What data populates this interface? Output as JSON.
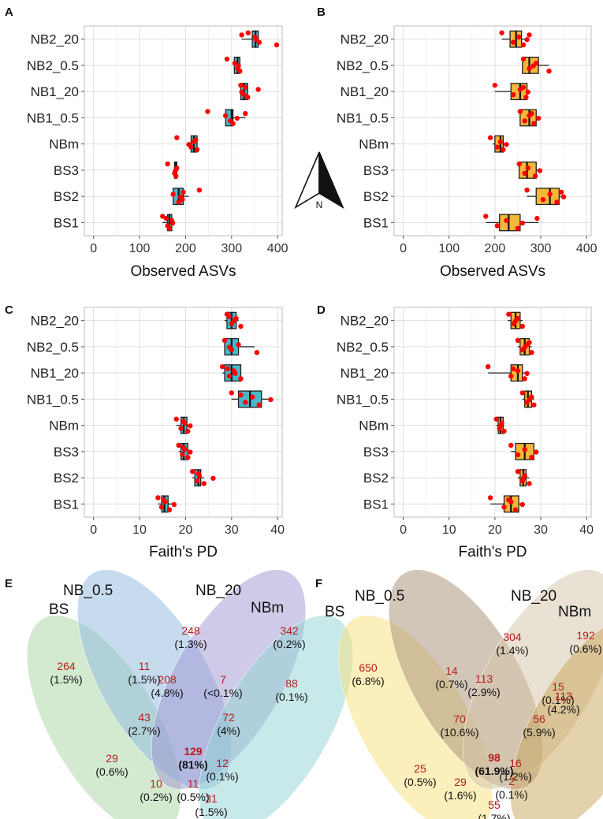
{
  "colors": {
    "teal_box": "#4ab6c9",
    "gold_box": "#f3b73a",
    "point": "#ff0000",
    "grid": "#dedede",
    "venn_count": "#b71c1c"
  },
  "compass_label": "N",
  "chart_data": [
    {
      "panel": "A",
      "type": "box",
      "xlabel": "Observed ASVs",
      "xlim": [
        -20,
        410
      ],
      "ticks": [
        0,
        100,
        200,
        300,
        400
      ],
      "box_color": "teal_box",
      "categories": [
        "NB2_20",
        "NB2_0.5",
        "NB1_20",
        "NB1_0.5",
        "NBm",
        "BS3",
        "BS2",
        "BS1"
      ],
      "boxes": [
        {
          "q1": 345,
          "med": 352,
          "q3": 358,
          "wlo": 322,
          "whi": 358
        },
        {
          "q1": 306,
          "med": 313,
          "q3": 318,
          "wlo": 306,
          "whi": 318
        },
        {
          "q1": 320,
          "med": 327,
          "q3": 335,
          "wlo": 320,
          "whi": 335
        },
        {
          "q1": 287,
          "med": 300,
          "q3": 303,
          "wlo": 287,
          "whi": 330
        },
        {
          "q1": 212,
          "med": 218,
          "q3": 225,
          "wlo": 207,
          "whi": 225
        },
        {
          "q1": 176,
          "med": 179,
          "q3": 181,
          "wlo": 176,
          "whi": 181
        },
        {
          "q1": 173,
          "med": 185,
          "q3": 195,
          "wlo": 173,
          "whi": 207
        },
        {
          "q1": 161,
          "med": 165,
          "q3": 170,
          "wlo": 150,
          "whi": 172
        }
      ],
      "points": [
        [
          336,
          360,
          351,
          398,
          353,
          322
        ],
        [
          290,
          313,
          307,
          318,
          315
        ],
        [
          320,
          327,
          358,
          335,
          322,
          330
        ],
        [
          248,
          297,
          287,
          303,
          312,
          330
        ],
        [
          181,
          212,
          218,
          225,
          207,
          222
        ],
        [
          161,
          176,
          181,
          179,
          178
        ],
        [
          230,
          193,
          173,
          185,
          189,
          195
        ],
        [
          150,
          161,
          170,
          165,
          172,
          158
        ]
      ]
    },
    {
      "panel": "B",
      "type": "box",
      "xlabel": "Observed ASVs",
      "xlim": [
        -20,
        410
      ],
      "ticks": [
        0,
        100,
        200,
        300,
        400
      ],
      "box_color": "gold_box",
      "categories": [
        "NB2_20",
        "NB2_0.5",
        "NB1_20",
        "NB1_0.5",
        "NBm",
        "BS3",
        "BS2",
        "BS1"
      ],
      "boxes": [
        {
          "q1": 233,
          "med": 246,
          "q3": 258,
          "wlo": 215,
          "whi": 275
        },
        {
          "q1": 260,
          "med": 275,
          "q3": 295,
          "wlo": 260,
          "whi": 318
        },
        {
          "q1": 235,
          "med": 255,
          "q3": 270,
          "wlo": 200,
          "whi": 275
        },
        {
          "q1": 255,
          "med": 275,
          "q3": 290,
          "wlo": 255,
          "whi": 295
        },
        {
          "q1": 200,
          "med": 212,
          "q3": 218,
          "wlo": 195,
          "whi": 225
        },
        {
          "q1": 253,
          "med": 270,
          "q3": 290,
          "wlo": 253,
          "whi": 300
        },
        {
          "q1": 290,
          "med": 320,
          "q3": 340,
          "wlo": 270,
          "whi": 350
        },
        {
          "q1": 210,
          "med": 230,
          "q3": 255,
          "wlo": 180,
          "whi": 295
        }
      ],
      "points": [
        [
          215,
          240,
          252,
          262,
          270,
          275
        ],
        [
          262,
          275,
          290,
          318,
          284
        ],
        [
          200,
          240,
          255,
          268,
          272,
          262
        ],
        [
          255,
          265,
          275,
          285,
          295,
          280
        ],
        [
          190,
          205,
          212,
          218,
          225
        ],
        [
          253,
          265,
          272,
          288,
          298
        ],
        [
          270,
          305,
          320,
          335,
          350,
          345
        ],
        [
          180,
          205,
          225,
          250,
          260,
          292
        ]
      ]
    },
    {
      "panel": "C",
      "type": "box",
      "xlabel": "Faith's PD",
      "xlim": [
        -2,
        41
      ],
      "ticks": [
        0,
        10,
        20,
        30,
        40
      ],
      "box_color": "teal_box",
      "categories": [
        "NB2_20",
        "NB2_0.5",
        "NB1_20",
        "NB1_0.5",
        "NBm",
        "BS3",
        "BS2",
        "BS1"
      ],
      "boxes": [
        {
          "q1": 29,
          "med": 30,
          "q3": 31,
          "wlo": 28.5,
          "whi": 31.5
        },
        {
          "q1": 28.5,
          "med": 30,
          "q3": 31.5,
          "wlo": 28.5,
          "whi": 35
        },
        {
          "q1": 28.5,
          "med": 30,
          "q3": 32,
          "wlo": 28,
          "whi": 32
        },
        {
          "q1": 31.5,
          "med": 34,
          "q3": 36.5,
          "wlo": 30,
          "whi": 38
        },
        {
          "q1": 19,
          "med": 19.6,
          "q3": 20.3,
          "wlo": 18,
          "whi": 21
        },
        {
          "q1": 19,
          "med": 19.6,
          "q3": 20.5,
          "wlo": 18.5,
          "whi": 21
        },
        {
          "q1": 22,
          "med": 22.8,
          "q3": 23.3,
          "wlo": 21.5,
          "whi": 24
        },
        {
          "q1": 14.8,
          "med": 15.4,
          "q3": 16.2,
          "wlo": 14,
          "whi": 17.5
        }
      ],
      "points": [
        [
          29,
          30,
          31,
          32,
          30.5,
          29.5
        ],
        [
          28.5,
          30,
          31.5,
          35.5,
          29.5
        ],
        [
          28,
          29.5,
          30.5,
          32,
          30.8,
          29.2
        ],
        [
          30,
          33,
          34.5,
          36,
          38.5,
          32
        ],
        [
          18,
          19,
          19.8,
          20.5,
          21,
          19.5
        ],
        [
          18.5,
          19.3,
          19.8,
          20.5,
          21,
          19.6
        ],
        [
          21.5,
          22.5,
          23,
          24,
          26,
          22.8
        ],
        [
          14,
          14.8,
          15.5,
          16.5,
          17.5,
          15.2
        ]
      ]
    },
    {
      "panel": "D",
      "type": "box",
      "xlabel": "Faith's PD",
      "xlim": [
        -2,
        41
      ],
      "ticks": [
        0,
        10,
        20,
        30,
        40
      ],
      "box_color": "gold_box",
      "categories": [
        "NB2_20",
        "NB2_0.5",
        "NB1_20",
        "NB1_0.5",
        "NBm",
        "BS3",
        "BS2",
        "BS1"
      ],
      "boxes": [
        {
          "q1": 23.5,
          "med": 24.5,
          "q3": 25.5,
          "wlo": 22.8,
          "whi": 26
        },
        {
          "q1": 25.5,
          "med": 26.5,
          "q3": 27.5,
          "wlo": 25,
          "whi": 28
        },
        {
          "q1": 23.5,
          "med": 25,
          "q3": 26,
          "wlo": 18.5,
          "whi": 27
        },
        {
          "q1": 26.5,
          "med": 27.2,
          "q3": 28,
          "wlo": 26,
          "whi": 28.5
        },
        {
          "q1": 20.7,
          "med": 21.2,
          "q3": 21.8,
          "wlo": 20.3,
          "whi": 22
        },
        {
          "q1": 24.5,
          "med": 26.5,
          "q3": 28.5,
          "wlo": 23.5,
          "whi": 29
        },
        {
          "q1": 25.5,
          "med": 26.2,
          "q3": 26.8,
          "wlo": 25,
          "whi": 27.5
        },
        {
          "q1": 22,
          "med": 23.5,
          "q3": 25.2,
          "wlo": 19,
          "whi": 26
        }
      ],
      "points": [
        [
          23,
          24,
          25,
          26,
          24.5
        ],
        [
          25,
          26,
          27,
          28,
          26.5,
          27.5
        ],
        [
          18.5,
          23.5,
          25,
          26.5,
          27,
          24
        ],
        [
          26,
          27,
          28,
          28.5,
          27.5
        ],
        [
          20.3,
          21,
          21.5,
          22,
          21.2
        ],
        [
          23.5,
          25,
          26.5,
          28,
          29
        ],
        [
          25,
          26,
          26.5,
          27.5,
          26.2
        ],
        [
          19,
          22,
          23.5,
          24.5,
          26,
          23
        ]
      ]
    },
    {
      "panel": "E",
      "type": "venn",
      "sets": [
        "BS",
        "NB_0.5",
        "NB_20",
        "NBm"
      ],
      "fills": [
        "#a8d5a2",
        "#8fb8e0",
        "#9d96d0",
        "#8fd3d3"
      ],
      "regions": [
        {
          "count": "248",
          "pct": "(1.3%)"
        },
        {
          "count": "342",
          "pct": "(0.2%)"
        },
        {
          "count": "264",
          "pct": "(1.5%)"
        },
        {
          "count": "11",
          "pct": "(1.5%)"
        },
        {
          "count": "208",
          "pct": "(4.8%)"
        },
        {
          "count": "7",
          "pct": "(<0.1%)"
        },
        {
          "count": "88",
          "pct": "(0.1%)"
        },
        {
          "count": "43",
          "pct": "(2.7%)"
        },
        {
          "count": "72",
          "pct": "(4%)"
        },
        {
          "count": "129",
          "pct": "(81%)",
          "bold": true
        },
        {
          "count": "29",
          "pct": "(0.6%)"
        },
        {
          "count": "12",
          "pct": "(0.1%)"
        },
        {
          "count": "10",
          "pct": "(0.2%)"
        },
        {
          "count": "11",
          "pct": "(0.5%)"
        },
        {
          "count": "31",
          "pct": "(1.5%)"
        }
      ]
    },
    {
      "panel": "F",
      "type": "venn",
      "sets": [
        "BS",
        "NB_0.5",
        "NB_20",
        "NBm"
      ],
      "fills": [
        "#f7df7a",
        "#a58d73",
        "#d4c4a8",
        "#c9a55c"
      ],
      "regions": [
        {
          "count": "304",
          "pct": "(1.4%)"
        },
        {
          "count": "192",
          "pct": "(0.6%)"
        },
        {
          "count": "650",
          "pct": "(6.8%)"
        },
        {
          "count": "14",
          "pct": "(0.7%)"
        },
        {
          "count": "113",
          "pct": "(2.9%)"
        },
        {
          "count": "15",
          "pct": "(0.1%)"
        },
        {
          "count": "113",
          "pct": "(4.2%)"
        },
        {
          "count": "70",
          "pct": "(10.6%)"
        },
        {
          "count": "56",
          "pct": "(5.9%)"
        },
        {
          "count": "98",
          "pct": "(61.9%)",
          "bold": true
        },
        {
          "count": "25",
          "pct": "(0.5%)"
        },
        {
          "count": "16",
          "pct": "(1.2%)"
        },
        {
          "count": "29",
          "pct": "(1.6%)"
        },
        {
          "count": "2",
          "pct": "(0.1%)"
        },
        {
          "count": "55",
          "pct": "(1.7%)"
        }
      ]
    }
  ]
}
